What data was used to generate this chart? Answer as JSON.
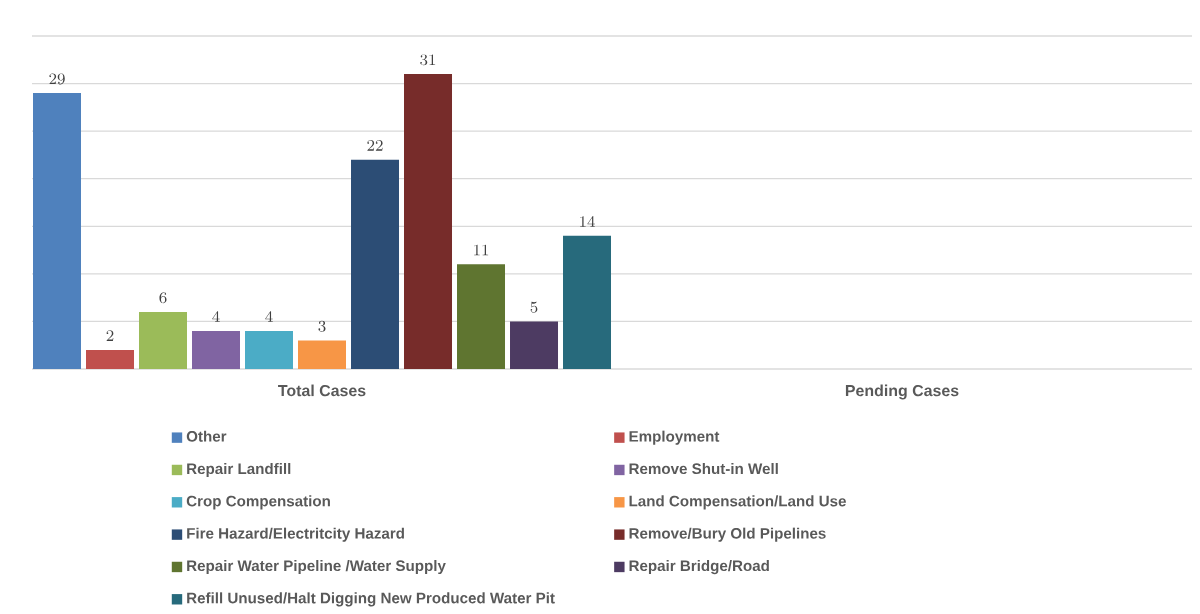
{
  "chart_data": {
    "type": "bar",
    "categories": [
      "Total  Cases",
      "Pending Cases"
    ],
    "series": [
      {
        "name": "Other",
        "color": "#4f81bd",
        "values": [
          29,
          null
        ]
      },
      {
        "name": "Employment",
        "color": "#c0504d",
        "values": [
          2,
          null
        ]
      },
      {
        "name": "Repair Landfill",
        "color": "#9bbb59",
        "values": [
          6,
          null
        ]
      },
      {
        "name": "Remove Shut-in Well",
        "color": "#8064a2",
        "values": [
          4,
          null
        ]
      },
      {
        "name": "Crop Compensation",
        "color": "#4bacc6",
        "values": [
          4,
          null
        ]
      },
      {
        "name": "Land Compensation/Land Use",
        "color": "#f79646",
        "values": [
          3,
          null
        ]
      },
      {
        "name": "Fire Hazard/Electritcity Hazard",
        "color": "#2c4d75",
        "values": [
          22,
          null
        ]
      },
      {
        "name": "Remove/Bury Old Pipelines",
        "color": "#772c2a",
        "values": [
          31,
          null
        ]
      },
      {
        "name": "Repair Water Pipeline /Water Supply",
        "color": "#5f7530",
        "values": [
          11,
          null
        ]
      },
      {
        "name": "Repair Bridge/Road",
        "color": "#4d3b62",
        "values": [
          5,
          null
        ]
      },
      {
        "name": "Refill Unused/Halt Digging New Produced Water Pit",
        "color": "#276a7c",
        "values": [
          14,
          null
        ]
      }
    ],
    "ylim": [
      0,
      35
    ],
    "yticks": [
      {
        "value": 0,
        "label": null
      },
      {
        "value": 5,
        "label": null
      },
      {
        "value": 10,
        "label": null
      },
      {
        "value": 15,
        "label": null
      },
      {
        "value": 20,
        "label": null
      },
      {
        "value": 25,
        "label": null
      },
      {
        "value": 30,
        "label": null
      },
      {
        "value": 35,
        "label": null
      }
    ],
    "tick_labels": "x",
    "grid": "y",
    "data_labels": true,
    "legend": "bottom"
  }
}
